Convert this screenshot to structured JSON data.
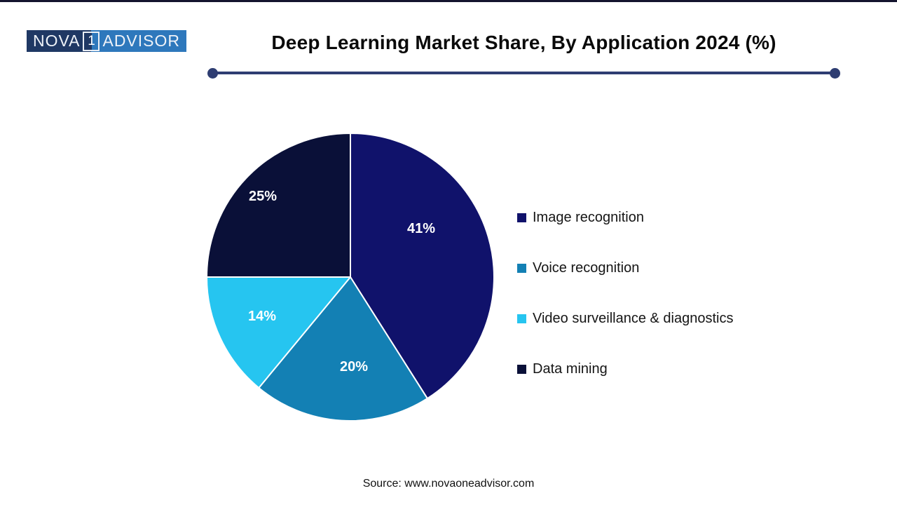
{
  "logo": {
    "part1": "NOVA",
    "badge": "1",
    "part2": "ADVISOR",
    "navy_color": "#1f3864",
    "blue_color": "#2e78bc"
  },
  "header": {
    "divider_color": "#2e3d72"
  },
  "chart_data": {
    "type": "pie",
    "title": "Deep Learning Market Share, By Application 2024 (%)",
    "categories": [
      "Image recognition",
      "Voice recognition",
      "Video surveillance & diagnostics",
      "Data mining"
    ],
    "values": [
      41,
      20,
      14,
      25
    ],
    "unit": "%",
    "colors": [
      "#10126b",
      "#1380b4",
      "#26c5f0",
      "#0a1038"
    ],
    "start_angle_deg": 0,
    "direction": "clockwise",
    "slice_label_format": "{value}%",
    "slice_label_color": "#ffffff",
    "legend_position": "right"
  },
  "footer": {
    "source": "Source: www.novaoneadvisor.com"
  }
}
